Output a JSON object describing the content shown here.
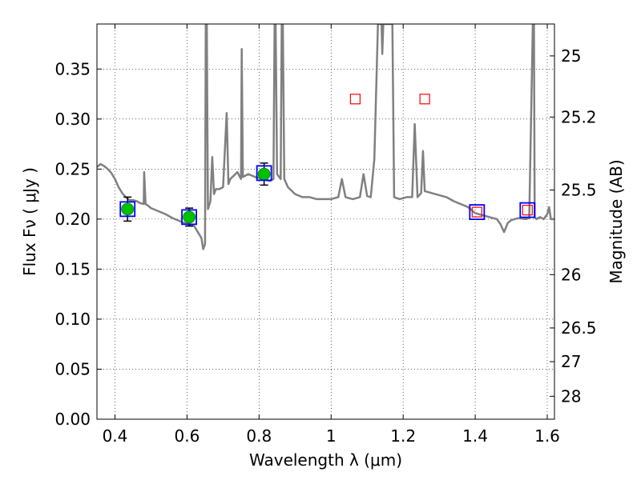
{
  "chart_data": {
    "type": "line",
    "xlabel": "Wavelength  λ (μm)",
    "ylabel_left": "Flux  Fν  ( μJy )",
    "ylabel_right": "Magnitude (AB)",
    "xlim": [
      0.35,
      1.62
    ],
    "ylim": [
      0.0,
      0.395
    ],
    "grid": true,
    "x_ticks": [
      0.4,
      0.6,
      0.8,
      1.0,
      1.2,
      1.4,
      1.6
    ],
    "x_tick_labels": [
      "0.4",
      "0.6",
      "0.8",
      "1",
      "1.2",
      "1.4",
      "1.6"
    ],
    "y_ticks": [
      0.0,
      0.05,
      0.1,
      0.15,
      0.2,
      0.25,
      0.3,
      0.35
    ],
    "y_tick_labels": [
      "0.00",
      "0.05",
      "0.10",
      "0.15",
      "0.20",
      "0.25",
      "0.30",
      "0.35"
    ],
    "right_ticks": [
      {
        "label": "25",
        "flux": 0.3631
      },
      {
        "label": "25.2",
        "flux": 0.302
      },
      {
        "label": "25.5",
        "flux": 0.2291
      },
      {
        "label": "26",
        "flux": 0.1445
      },
      {
        "label": "26.5",
        "flux": 0.0912
      },
      {
        "label": "27",
        "flux": 0.0575
      },
      {
        "label": "28",
        "flux": 0.0229
      }
    ],
    "series": [
      {
        "kind": "model-spectrum",
        "color": "#808080",
        "points": [
          [
            0.35,
            0.252
          ],
          [
            0.36,
            0.255
          ],
          [
            0.37,
            0.253
          ],
          [
            0.38,
            0.25
          ],
          [
            0.39,
            0.246
          ],
          [
            0.4,
            0.24
          ],
          [
            0.41,
            0.232
          ],
          [
            0.42,
            0.226
          ],
          [
            0.43,
            0.222
          ],
          [
            0.44,
            0.219
          ],
          [
            0.45,
            0.219
          ],
          [
            0.46,
            0.218
          ],
          [
            0.47,
            0.216
          ],
          [
            0.48,
            0.215
          ],
          [
            0.481,
            0.247
          ],
          [
            0.485,
            0.215
          ],
          [
            0.49,
            0.214
          ],
          [
            0.5,
            0.211
          ],
          [
            0.52,
            0.208
          ],
          [
            0.54,
            0.205
          ],
          [
            0.56,
            0.201
          ],
          [
            0.58,
            0.198
          ],
          [
            0.6,
            0.195
          ],
          [
            0.62,
            0.193
          ],
          [
            0.63,
            0.187
          ],
          [
            0.64,
            0.181
          ],
          [
            0.645,
            0.17
          ],
          [
            0.65,
            0.175
          ],
          [
            0.652,
            0.395
          ],
          [
            0.655,
            0.395
          ],
          [
            0.658,
            0.21
          ],
          [
            0.665,
            0.218
          ],
          [
            0.67,
            0.262
          ],
          [
            0.675,
            0.225
          ],
          [
            0.68,
            0.23
          ],
          [
            0.69,
            0.23
          ],
          [
            0.7,
            0.232
          ],
          [
            0.71,
            0.306
          ],
          [
            0.715,
            0.235
          ],
          [
            0.72,
            0.24
          ],
          [
            0.74,
            0.247
          ],
          [
            0.75,
            0.24
          ],
          [
            0.752,
            0.37
          ],
          [
            0.755,
            0.242
          ],
          [
            0.77,
            0.245
          ],
          [
            0.79,
            0.242
          ],
          [
            0.81,
            0.24
          ],
          [
            0.83,
            0.238
          ],
          [
            0.84,
            0.24
          ],
          [
            0.843,
            0.395
          ],
          [
            0.846,
            0.395
          ],
          [
            0.85,
            0.245
          ],
          [
            0.86,
            0.24
          ],
          [
            0.863,
            0.395
          ],
          [
            0.866,
            0.395
          ],
          [
            0.87,
            0.24
          ],
          [
            0.88,
            0.232
          ],
          [
            0.9,
            0.225
          ],
          [
            0.92,
            0.222
          ],
          [
            0.94,
            0.222
          ],
          [
            0.96,
            0.22
          ],
          [
            0.98,
            0.22
          ],
          [
            1.0,
            0.22
          ],
          [
            1.02,
            0.222
          ],
          [
            1.03,
            0.24
          ],
          [
            1.04,
            0.222
          ],
          [
            1.06,
            0.22
          ],
          [
            1.08,
            0.222
          ],
          [
            1.09,
            0.245
          ],
          [
            1.1,
            0.223
          ],
          [
            1.11,
            0.222
          ],
          [
            1.12,
            0.26
          ],
          [
            1.13,
            0.395
          ],
          [
            1.14,
            0.395
          ],
          [
            1.142,
            0.365
          ],
          [
            1.145,
            0.395
          ],
          [
            1.17,
            0.395
          ],
          [
            1.175,
            0.222
          ],
          [
            1.19,
            0.22
          ],
          [
            1.21,
            0.222
          ],
          [
            1.225,
            0.222
          ],
          [
            1.232,
            0.295
          ],
          [
            1.24,
            0.222
          ],
          [
            1.25,
            0.226
          ],
          [
            1.255,
            0.268
          ],
          [
            1.26,
            0.228
          ],
          [
            1.28,
            0.226
          ],
          [
            1.3,
            0.224
          ],
          [
            1.32,
            0.222
          ],
          [
            1.34,
            0.218
          ],
          [
            1.36,
            0.215
          ],
          [
            1.38,
            0.212
          ],
          [
            1.4,
            0.206
          ],
          [
            1.42,
            0.204
          ],
          [
            1.44,
            0.202
          ],
          [
            1.46,
            0.2
          ],
          [
            1.47,
            0.195
          ],
          [
            1.48,
            0.187
          ],
          [
            1.49,
            0.196
          ],
          [
            1.5,
            0.199
          ],
          [
            1.51,
            0.2
          ],
          [
            1.52,
            0.201
          ],
          [
            1.54,
            0.2
          ],
          [
            1.55,
            0.201
          ],
          [
            1.56,
            0.395
          ],
          [
            1.563,
            0.395
          ],
          [
            1.565,
            0.202
          ],
          [
            1.57,
            0.2
          ],
          [
            1.58,
            0.202
          ],
          [
            1.59,
            0.2
          ],
          [
            1.6,
            0.205
          ],
          [
            1.605,
            0.212
          ],
          [
            1.61,
            0.2
          ],
          [
            1.62,
            0.2
          ]
        ]
      },
      {
        "kind": "observed-photometry",
        "marker": "circle",
        "color": "#00c000",
        "points": [
          {
            "x": 0.435,
            "y": 0.21,
            "err": 0.012
          },
          {
            "x": 0.606,
            "y": 0.202,
            "err": 0.009
          },
          {
            "x": 0.814,
            "y": 0.245,
            "err": 0.011
          }
        ]
      },
      {
        "kind": "model-photometry",
        "marker": "square-blue",
        "color": "#0000ff",
        "points": [
          {
            "x": 0.435,
            "y": 0.21
          },
          {
            "x": 0.606,
            "y": 0.202
          },
          {
            "x": 0.814,
            "y": 0.246
          },
          {
            "x": 1.405,
            "y": 0.207
          },
          {
            "x": 1.545,
            "y": 0.209
          }
        ]
      },
      {
        "kind": "upper-limit",
        "marker": "square-red",
        "color": "#ff0000",
        "points": [
          {
            "x": 1.067,
            "y": 0.32
          },
          {
            "x": 1.26,
            "y": 0.32
          },
          {
            "x": 1.405,
            "y": 0.207
          },
          {
            "x": 1.545,
            "y": 0.209
          }
        ]
      }
    ]
  }
}
